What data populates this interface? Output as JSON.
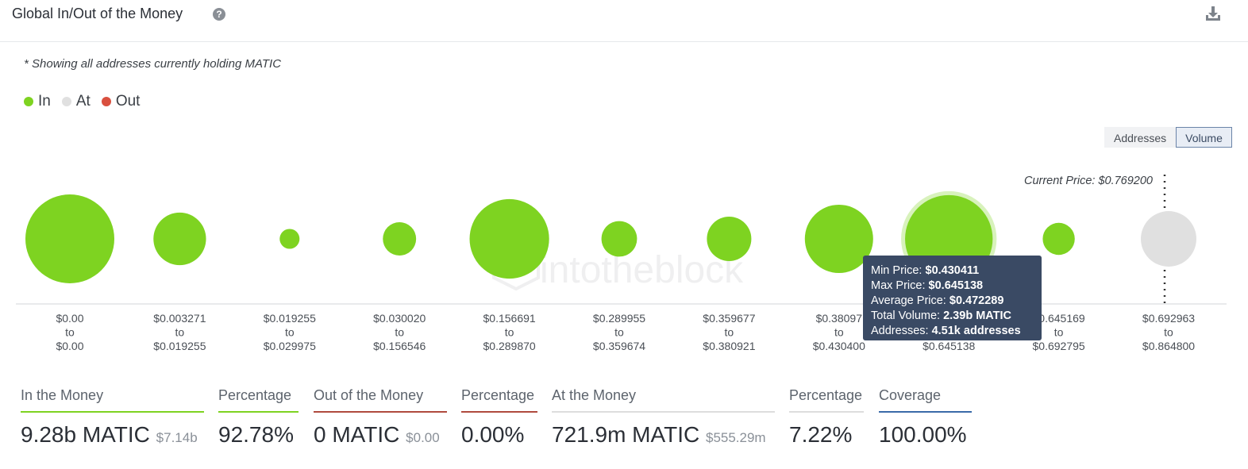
{
  "header": {
    "title": "Global In/Out of the Money",
    "help_icon": "question-icon",
    "download_icon": "download-icon"
  },
  "subtitle": "* Showing all addresses currently holding MATIC",
  "legend": [
    {
      "label": "In",
      "color": "#7ed321"
    },
    {
      "label": "At",
      "color": "#e0e0e0"
    },
    {
      "label": "Out",
      "color": "#d9503f"
    }
  ],
  "toggle": {
    "addresses_label": "Addresses",
    "volume_label": "Volume",
    "selected": "Volume"
  },
  "chart_data": {
    "type": "bubble",
    "current_price_label": "Current Price: $0.769200",
    "watermark": "intotheblock",
    "buckets": [
      {
        "from": "$0.00",
        "to": "$0.00",
        "status": "In",
        "relative_volume": 1.0
      },
      {
        "from": "$0.003271",
        "to": "$0.019255",
        "status": "In",
        "relative_volume": 0.35
      },
      {
        "from": "$0.019255",
        "to": "$0.029975",
        "status": "In",
        "relative_volume": 0.05
      },
      {
        "from": "$0.030020",
        "to": "$0.156546",
        "status": "In",
        "relative_volume": 0.14
      },
      {
        "from": "$0.156691",
        "to": "$0.289870",
        "status": "In",
        "relative_volume": 0.8
      },
      {
        "from": "$0.289955",
        "to": "$0.359674",
        "status": "In",
        "relative_volume": 0.16
      },
      {
        "from": "$0.359677",
        "to": "$0.380921",
        "status": "In",
        "relative_volume": 0.25
      },
      {
        "from": "$0.38097",
        "to": "$0.430400",
        "status": "In",
        "relative_volume": 0.59
      },
      {
        "from": "$0.430411",
        "to": "$0.645138",
        "status": "In",
        "relative_volume": 0.97
      },
      {
        "from": "$0.645169",
        "to": "$0.692795",
        "status": "In",
        "relative_volume": 0.13
      },
      {
        "from": "$0.692963",
        "to": "$0.864800",
        "status": "At",
        "relative_volume": 0.39
      }
    ],
    "connector": "to",
    "highlighted_index": 8
  },
  "tooltip": {
    "min_label": "Min Price:",
    "min_value": "$0.430411",
    "max_label": "Max Price:",
    "max_value": "$0.645138",
    "avg_label": "Average Price:",
    "avg_value": "$0.472289",
    "vol_label": "Total Volume:",
    "vol_value": "2.39b MATIC",
    "addr_label": "Addresses:",
    "addr_value": "4.51k addresses"
  },
  "stats": {
    "in": {
      "label": "In the Money",
      "value": "9.28b MATIC",
      "sub": "$7.14b",
      "color": "#7ed321"
    },
    "in_pct": {
      "label": "Percentage",
      "value": "92.78%",
      "color": "#7ed321"
    },
    "out": {
      "label": "Out of the Money",
      "value": "0 MATIC",
      "sub": "$0.00",
      "color": "#b04a3e"
    },
    "out_pct": {
      "label": "Percentage",
      "value": "0.00%",
      "color": "#b04a3e"
    },
    "at": {
      "label": "At the Money",
      "value": "721.9m MATIC",
      "sub": "$555.29m",
      "color": "#dddddd"
    },
    "at_pct": {
      "label": "Percentage",
      "value": "7.22%",
      "color": "#dddddd"
    },
    "coverage": {
      "label": "Coverage",
      "value": "100.00%",
      "color": "#3a6aa8"
    }
  }
}
